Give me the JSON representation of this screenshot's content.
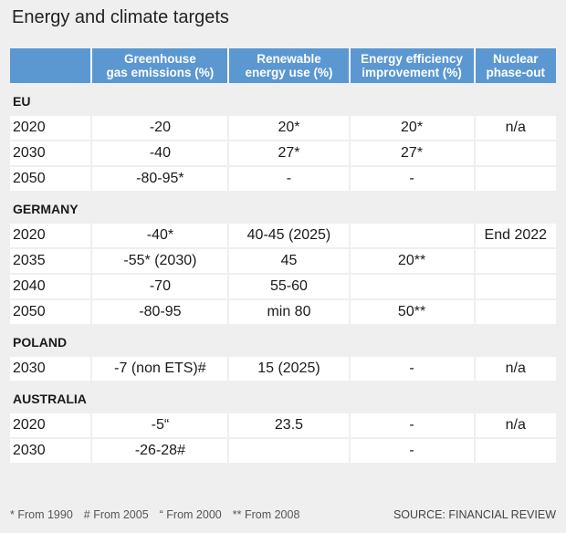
{
  "title": "Energy and climate targets",
  "headers": [
    "",
    "Greenhouse gas emissions (%)",
    "Renewable energy use (%)",
    "Energy efficiency improvement (%)",
    "Nuclear phase-out"
  ],
  "header_lines": [
    [
      "",
      ""
    ],
    [
      "Greenhouse",
      "gas emissions (%)"
    ],
    [
      "Renewable",
      "energy use (%)"
    ],
    [
      "Energy efficiency",
      "improvement (%)"
    ],
    [
      "Nuclear",
      "phase-out"
    ]
  ],
  "sections": [
    {
      "name": "EU",
      "rows": [
        [
          "2020",
          "-20",
          "20*",
          "20*",
          "n/a"
        ],
        [
          "2030",
          "-40",
          "27*",
          "27*",
          ""
        ],
        [
          "2050",
          "-80-95*",
          "-",
          "-",
          ""
        ]
      ]
    },
    {
      "name": "GERMANY",
      "rows": [
        [
          "2020",
          "-40*",
          "40-45 (2025)",
          "",
          "End 2022"
        ],
        [
          "2035",
          "-55* (2030)",
          "45",
          "20**",
          ""
        ],
        [
          "2040",
          "-70",
          "55-60",
          "",
          ""
        ],
        [
          "2050",
          "-80-95",
          "min 80",
          "50**",
          ""
        ]
      ]
    },
    {
      "name": "POLAND",
      "rows": [
        [
          "2030",
          "-7 (non ETS)#",
          "15 (2025)",
          "-",
          "n/a"
        ]
      ]
    },
    {
      "name": "AUSTRALIA",
      "rows": [
        [
          "2020",
          "-5“",
          "23.5",
          "-",
          "n/a"
        ],
        [
          "2030",
          "-26-28#",
          "",
          "-",
          ""
        ]
      ]
    }
  ],
  "notes": [
    "* From 1990",
    "# From 2005",
    "“ From 2000",
    "** From 2008"
  ],
  "source": "SOURCE: FINANCIAL REVIEW",
  "colors": {
    "header_bg": "#5b97d1",
    "page_bg": "#efefef",
    "cell_bg": "#ffffff"
  },
  "chart_data": {
    "type": "table",
    "title": "Energy and climate targets",
    "columns": [
      "",
      "Greenhouse gas emissions (%)",
      "Renewable energy use (%)",
      "Energy efficiency improvement (%)",
      "Nuclear phase-out"
    ],
    "groups": [
      "EU",
      "GERMANY",
      "POLAND",
      "AUSTRALIA"
    ]
  }
}
